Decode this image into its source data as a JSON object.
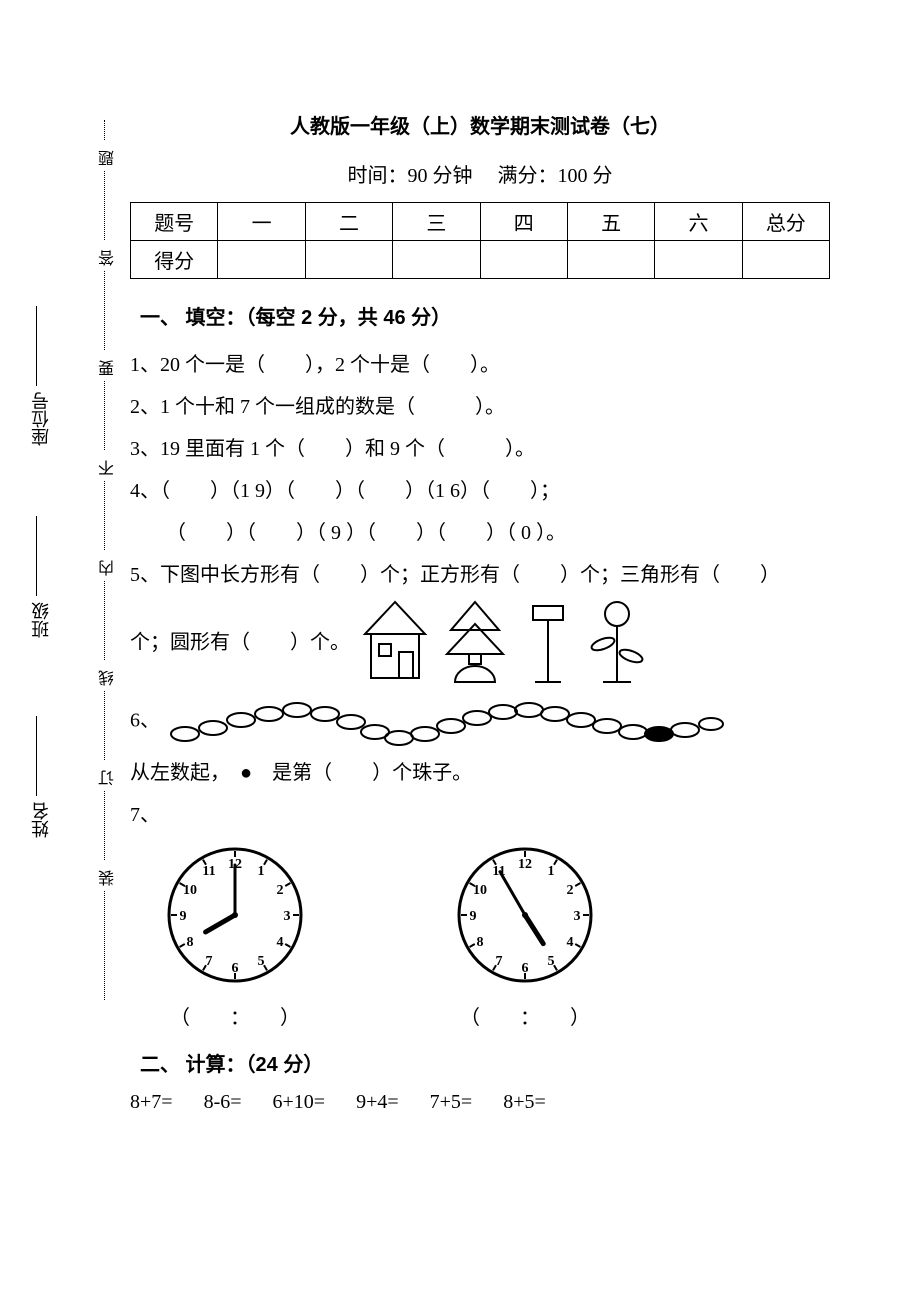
{
  "title": "人教版一年级（上）数学期末测试卷（七）",
  "time_label": "时间：90 分钟",
  "full_label": "满分：100 分",
  "score_table": {
    "row1": [
      "题号",
      "一",
      "二",
      "三",
      "四",
      "五",
      "六",
      "总分"
    ],
    "row2_first": "得分"
  },
  "sections": {
    "s1": {
      "heading": "一、  填空：（每空 2 分，共 46 分）"
    },
    "s2": {
      "heading": "二、  计算：（24 分）"
    }
  },
  "q1": "1、20 个一是（　　），2 个十是（　　）。",
  "q2": "2、1 个十和 7 个一组成的数是（　　　）。",
  "q3": "3、19 里面有 1 个（　　）和 9 个（　　　）。",
  "q4a": "4、（　　）（1 9）（　　）（　　）（1 6）（　　）；",
  "q4b": "（　　）（　　）（ 9 ）（　　）（　　）（ 0 ）。",
  "q5a": "5、下图中长方形有（　　）个；正方形有（　　）个；三角形有（　　）",
  "q5b": "个；圆形有（　　）个。",
  "q6a": "6、",
  "q6b": "从左数起，　●　是第（　　）个珠子。",
  "q7": "7、",
  "clock_caption": "（　　：　　）",
  "calc": {
    "c1": "8+7=",
    "c2": "8-6=",
    "c3": "6+10=",
    "c4": "9+4=",
    "c5": "7+5=",
    "c6": "8+5="
  },
  "binding": {
    "b1": "装",
    "b2": "订",
    "b3": "线",
    "b4": "内",
    "b5": "不",
    "b6": "要",
    "b7": "答",
    "b8": "题"
  },
  "side": {
    "name": "姓名",
    "class": "班级",
    "seat": "座位号"
  },
  "clocks": {
    "clock1": {
      "hour": 8,
      "minute": 0
    },
    "clock2": {
      "hour": 4,
      "minute": 55
    }
  },
  "style": {
    "text_color": "#000000",
    "bg_color": "#ffffff",
    "title_fontsize": 20,
    "body_fontsize": 20,
    "line_height": 2.1,
    "table_border_color": "#000000"
  }
}
